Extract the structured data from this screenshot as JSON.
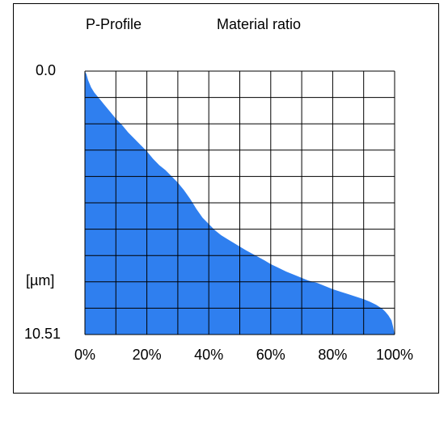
{
  "chart_data": {
    "type": "area",
    "title_left": "P-Profile",
    "title_right": "Material ratio",
    "ylabel": "[µm]",
    "y_top_label": "0.0",
    "y_bottom_label": "10.51",
    "ylim": [
      0.0,
      10.51
    ],
    "xlim": [
      0,
      100
    ],
    "x_tick_labels": [
      "0%",
      "20%",
      "40%",
      "60%",
      "80%",
      "100%"
    ],
    "x_ticks": [
      0,
      20,
      40,
      60,
      80,
      100
    ],
    "grid": true,
    "fill_color": "#2f7fef",
    "grid_color": "#000000",
    "series": [
      {
        "x": [
          0,
          0.5,
          1,
          2,
          3,
          4,
          5,
          6,
          8,
          10,
          12,
          14,
          16,
          18,
          20,
          22,
          24,
          26,
          28,
          30,
          32,
          34,
          35,
          36,
          38,
          40,
          42,
          44,
          46,
          48,
          50,
          52,
          55,
          58,
          60,
          62,
          65,
          68,
          70,
          72,
          75,
          78,
          80,
          82,
          85,
          88,
          90,
          92,
          94,
          96,
          97,
          98,
          99,
          99.5,
          100
        ],
        "values": [
          0.0,
          0.13,
          0.35,
          0.65,
          0.85,
          1.0,
          1.15,
          1.3,
          1.6,
          1.9,
          2.15,
          2.45,
          2.7,
          2.95,
          3.2,
          3.5,
          3.75,
          3.95,
          4.2,
          4.45,
          4.75,
          5.1,
          5.3,
          5.5,
          5.85,
          6.1,
          6.35,
          6.55,
          6.7,
          6.85,
          7.0,
          7.15,
          7.35,
          7.55,
          7.7,
          7.82,
          8.0,
          8.15,
          8.25,
          8.35,
          8.45,
          8.6,
          8.7,
          8.78,
          8.9,
          9.02,
          9.1,
          9.2,
          9.32,
          9.48,
          9.6,
          9.75,
          9.95,
          10.2,
          10.51
        ]
      }
    ]
  }
}
